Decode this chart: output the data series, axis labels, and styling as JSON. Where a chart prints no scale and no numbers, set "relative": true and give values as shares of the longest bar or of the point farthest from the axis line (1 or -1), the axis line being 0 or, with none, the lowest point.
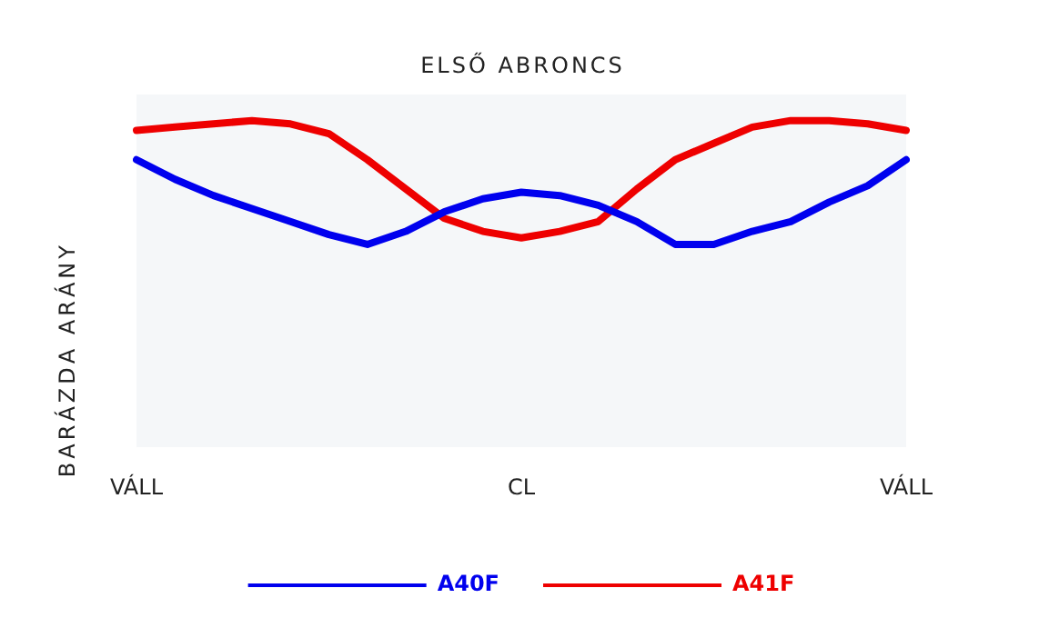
{
  "chart_data": {
    "type": "line",
    "title": "ELSŐ ABRONCS",
    "ylabel": "BARÁZDA ARÁNY",
    "relative": true,
    "grid": false,
    "legend": "bottom",
    "marker": "none",
    "line_style": "solid",
    "categories": [
      "VÁLL",
      null,
      null,
      null,
      null,
      null,
      null,
      null,
      null,
      null,
      "CL",
      null,
      null,
      null,
      null,
      null,
      null,
      null,
      null,
      null,
      "VÁLL"
    ],
    "series": [
      {
        "name": "A40F",
        "color": "#0000ee",
        "values": [
          0.88,
          0.82,
          0.77,
          0.73,
          0.69,
          0.65,
          0.62,
          0.66,
          0.72,
          0.76,
          0.78,
          0.77,
          0.74,
          0.69,
          0.62,
          0.62,
          0.66,
          0.69,
          0.75,
          0.8,
          0.88
        ]
      },
      {
        "name": "A41F",
        "color": "#ee0000",
        "values": [
          0.97,
          0.98,
          0.99,
          1,
          0.99,
          0.96,
          0.88,
          0.79,
          0.7,
          0.66,
          0.64,
          0.66,
          0.69,
          0.79,
          0.88,
          0.93,
          0.98,
          1,
          1,
          0.99,
          0.97
        ]
      }
    ]
  }
}
